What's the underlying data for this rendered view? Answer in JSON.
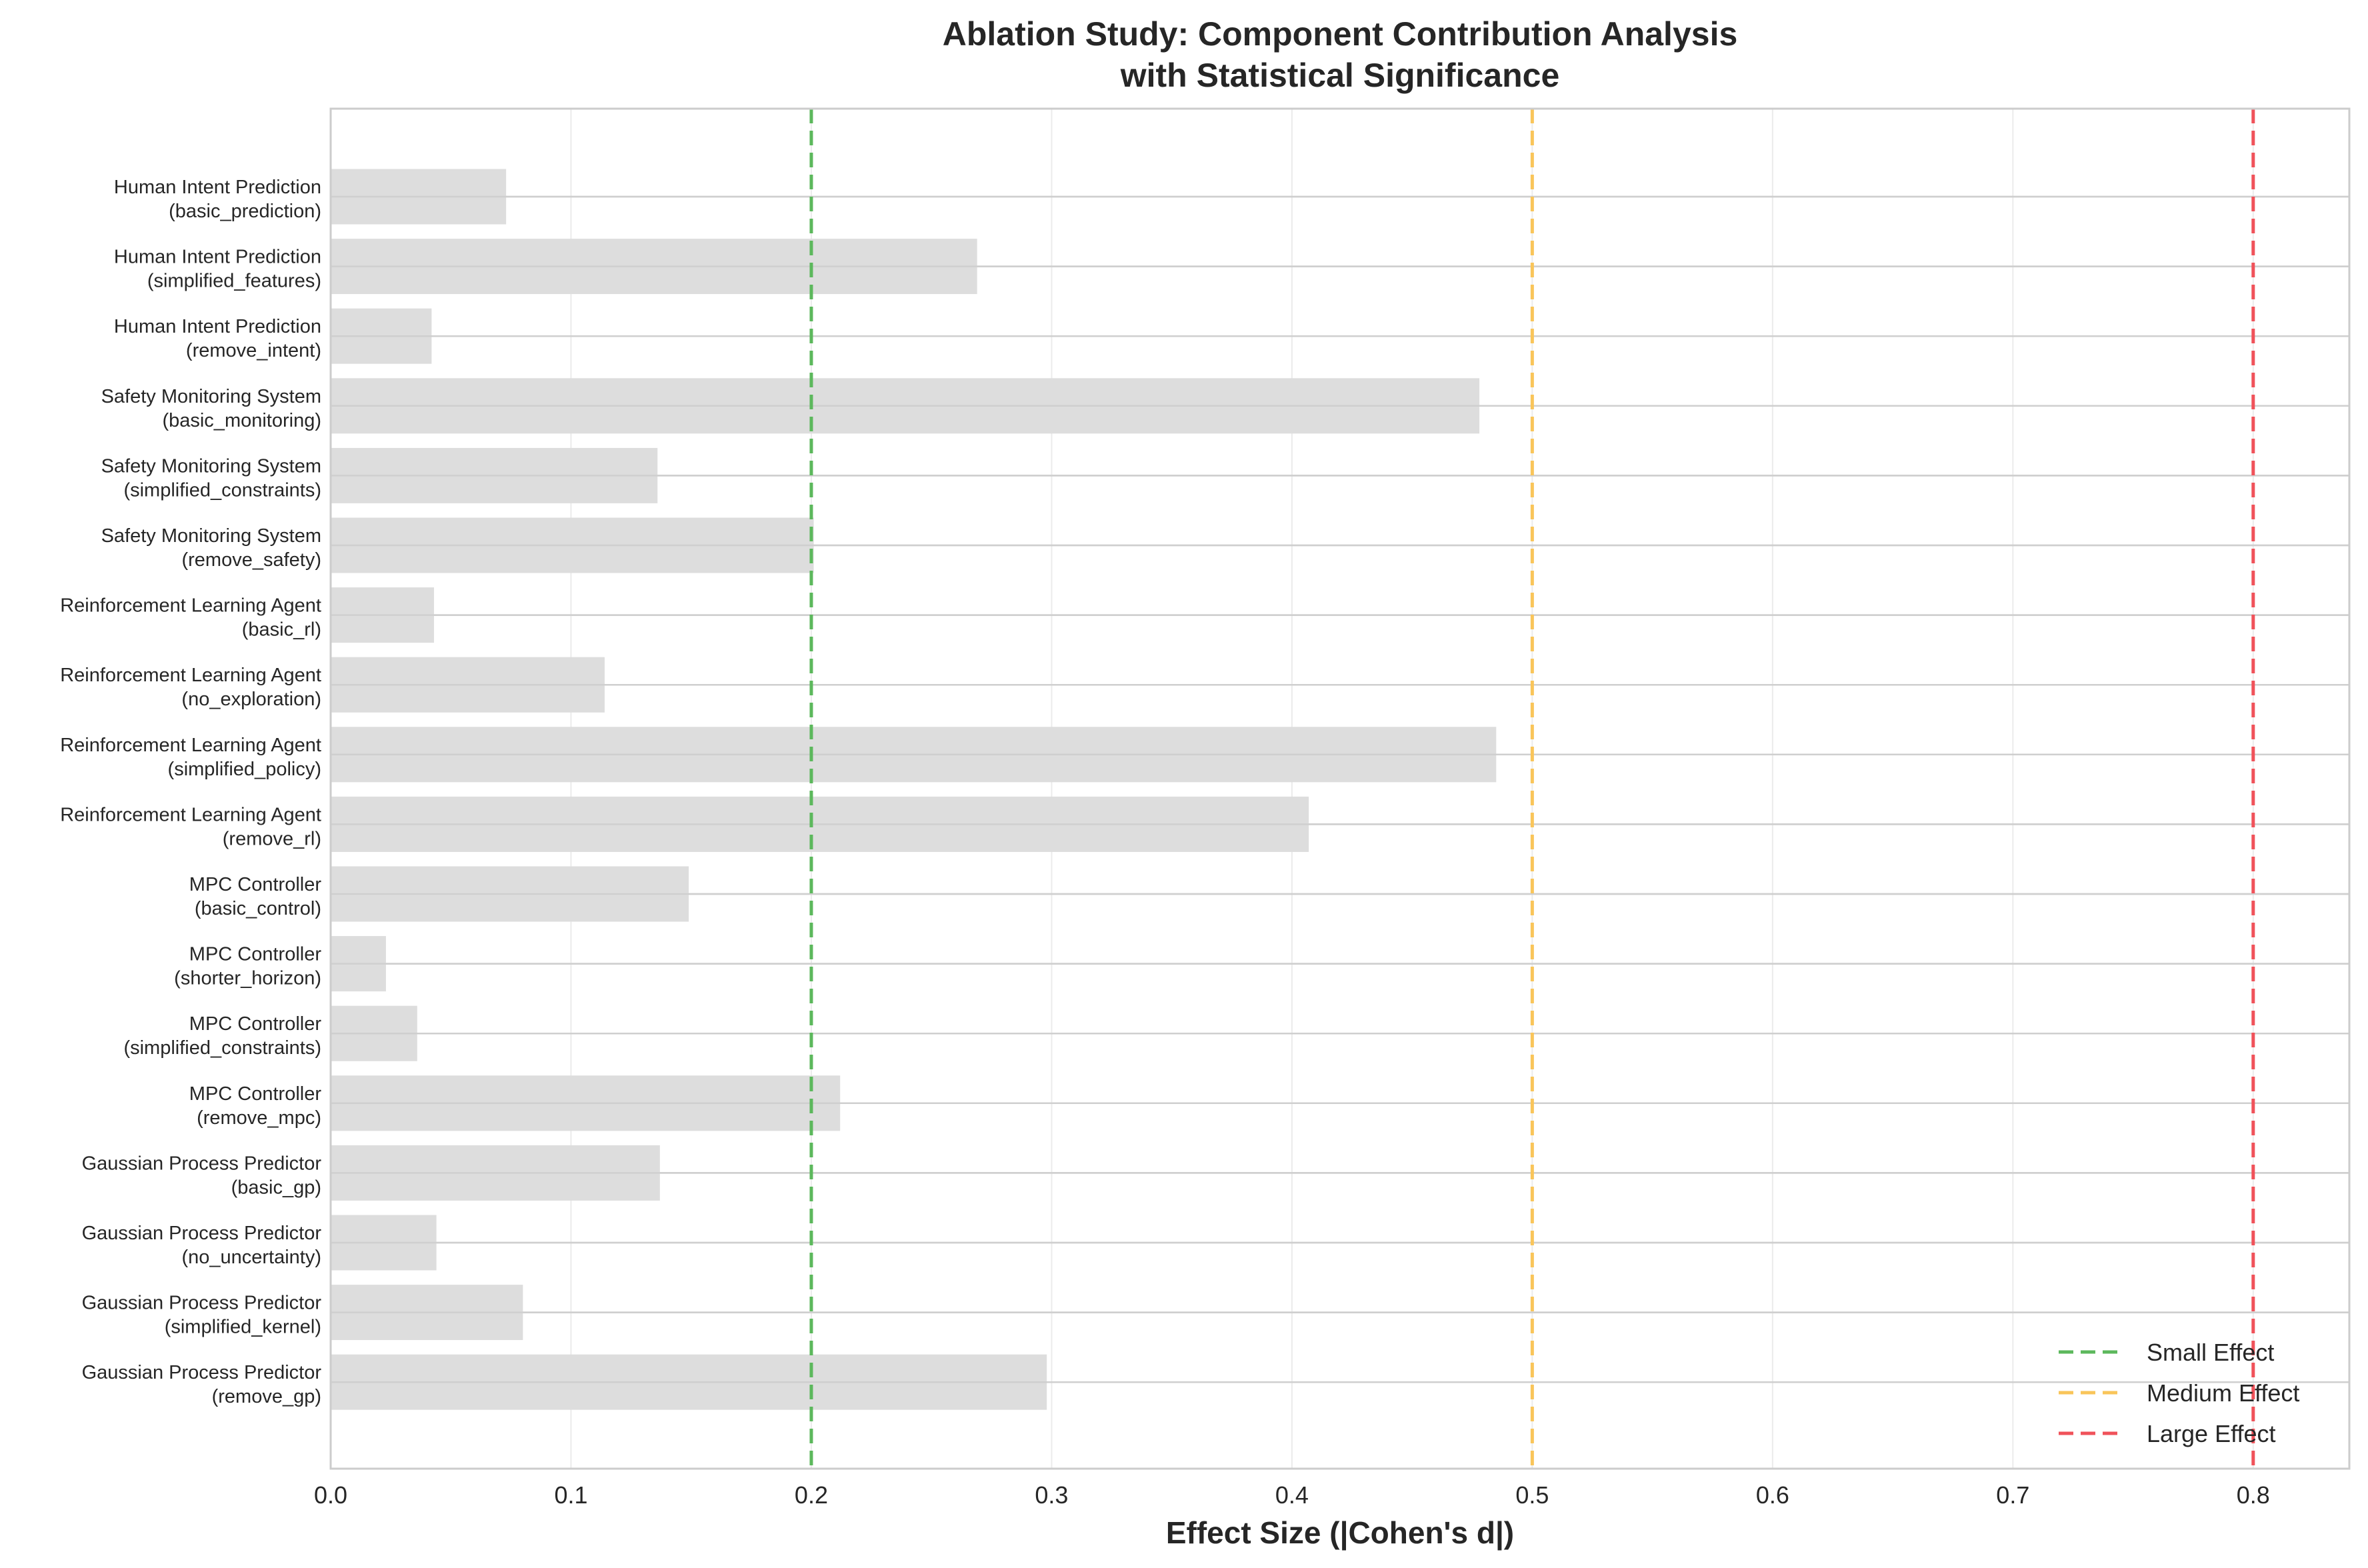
{
  "chart_data": {
    "type": "bar",
    "orientation": "horizontal",
    "title_lines": [
      "Ablation Study: Component Contribution Analysis",
      "with Statistical Significance"
    ],
    "xlabel": "Effect Size (|Cohen's d|)",
    "ylabel": "",
    "xlim": [
      0,
      0.84
    ],
    "xticks": [
      "0.0",
      "0.1",
      "0.2",
      "0.3",
      "0.4",
      "0.5",
      "0.6",
      "0.7",
      "0.8"
    ],
    "grid": true,
    "bar_color": "#dddddd",
    "categories": [
      {
        "component": "Human Intent Prediction",
        "variant": "(basic_prediction)"
      },
      {
        "component": "Human Intent Prediction",
        "variant": "(simplified_features)"
      },
      {
        "component": "Human Intent Prediction",
        "variant": "(remove_intent)"
      },
      {
        "component": "Safety Monitoring System",
        "variant": "(basic_monitoring)"
      },
      {
        "component": "Safety Monitoring System",
        "variant": "(simplified_constraints)"
      },
      {
        "component": "Safety Monitoring System",
        "variant": "(remove_safety)"
      },
      {
        "component": "Reinforcement Learning Agent",
        "variant": "(basic_rl)"
      },
      {
        "component": "Reinforcement Learning Agent",
        "variant": "(no_exploration)"
      },
      {
        "component": "Reinforcement Learning Agent",
        "variant": "(simplified_policy)"
      },
      {
        "component": "Reinforcement Learning Agent",
        "variant": "(remove_rl)"
      },
      {
        "component": "MPC Controller",
        "variant": "(basic_control)"
      },
      {
        "component": "MPC Controller",
        "variant": "(shorter_horizon)"
      },
      {
        "component": "MPC Controller",
        "variant": "(simplified_constraints)"
      },
      {
        "component": "MPC Controller",
        "variant": "(remove_mpc)"
      },
      {
        "component": "Gaussian Process Predictor",
        "variant": "(basic_gp)"
      },
      {
        "component": "Gaussian Process Predictor",
        "variant": "(no_uncertainty)"
      },
      {
        "component": "Gaussian Process Predictor",
        "variant": "(simplified_kernel)"
      },
      {
        "component": "Gaussian Process Predictor",
        "variant": "(remove_gp)"
      }
    ],
    "values": [
      0.073,
      0.269,
      0.042,
      0.478,
      0.136,
      0.201,
      0.043,
      0.114,
      0.485,
      0.407,
      0.149,
      0.023,
      0.036,
      0.212,
      0.137,
      0.044,
      0.08,
      0.298
    ],
    "reference_lines": [
      {
        "name": "Small Effect",
        "x": 0.2,
        "color": "#5cb85c"
      },
      {
        "name": "Medium Effect",
        "x": 0.5,
        "color": "#f9c55a"
      },
      {
        "name": "Large Effect",
        "x": 0.8,
        "color": "#f0525a"
      }
    ],
    "legend_position": "lower-right"
  }
}
